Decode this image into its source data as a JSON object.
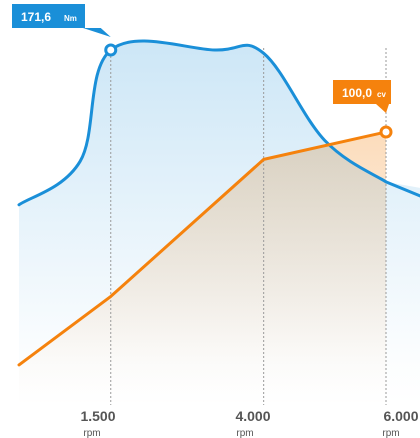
{
  "chart_data": {
    "type": "line",
    "x": [
      1500,
      4000,
      6000
    ],
    "x_tick_labels": [
      "1.500",
      "4.000",
      "6.000"
    ],
    "x_unit": "rpm",
    "series": [
      {
        "name": "Nm",
        "color": "#1a8fd8",
        "points": [
          [
            0,
            97
          ],
          [
            1000,
            118
          ],
          [
            1500,
            171.6
          ],
          [
            3200,
            171.6
          ],
          [
            4000,
            170
          ],
          [
            5000,
            128
          ],
          [
            6000,
            108
          ]
        ],
        "peak": {
          "x": 1500,
          "value": 171.6,
          "label": "171,6",
          "unit": "Nm"
        }
      },
      {
        "name": "cv",
        "color": "#f5820d",
        "points": [
          [
            0,
            15
          ],
          [
            1500,
            40
          ],
          [
            4000,
            90
          ],
          [
            6000,
            100
          ]
        ],
        "peak": {
          "x": 6000,
          "value": 100,
          "label": "100,0",
          "unit": "cv"
        }
      }
    ],
    "legend": "none",
    "grid": "vertical dashed lines at ticks"
  }
}
